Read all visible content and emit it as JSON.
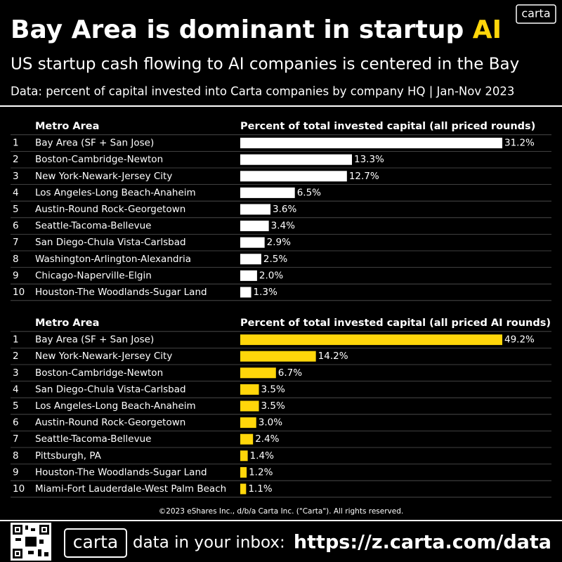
{
  "header": {
    "logo": "carta",
    "title": "Bay Area is dominant in startup",
    "title_highlight": "AI",
    "subtitle": "US startup cash flowing to AI companies is centered in the Bay",
    "source": "Data: percent of capital invested into Carta companies by company HQ | Jan-Nov 2023"
  },
  "chart_data": [
    {
      "type": "bar",
      "orientation": "horizontal",
      "color": "#ffffff",
      "category_header": "Metro Area",
      "value_header": "Percent of total invested capital (all priced rounds)",
      "ranks": [
        1,
        2,
        3,
        4,
        5,
        6,
        7,
        8,
        9,
        10
      ],
      "categories": [
        "Bay Area (SF + San Jose)",
        "Boston-Cambridge-Newton",
        "New York-Newark-Jersey City",
        "Los Angeles-Long Beach-Anaheim",
        "Austin-Round Rock-Georgetown",
        "Seattle-Tacoma-Bellevue",
        "San Diego-Chula Vista-Carlsbad",
        "Washington-Arlington-Alexandria",
        "Chicago-Naperville-Elgin",
        "Houston-The Woodlands-Sugar Land"
      ],
      "values": [
        31.2,
        13.3,
        12.7,
        6.5,
        3.6,
        3.4,
        2.9,
        2.5,
        2.0,
        1.3
      ],
      "value_labels": [
        "31.2%",
        "13.3%",
        "12.7%",
        "6.5%",
        "3.6%",
        "3.4%",
        "2.9%",
        "2.5%",
        "2.0%",
        "1.3%"
      ]
    },
    {
      "type": "bar",
      "orientation": "horizontal",
      "color": "#ffd60a",
      "category_header": "Metro Area",
      "value_header": "Percent of total invested capital (all priced AI rounds)",
      "ranks": [
        1,
        2,
        3,
        4,
        5,
        6,
        7,
        8,
        9,
        10
      ],
      "categories": [
        "Bay Area (SF + San Jose)",
        "New York-Newark-Jersey City",
        "Boston-Cambridge-Newton",
        "San Diego-Chula Vista-Carlsbad",
        "Los Angeles-Long Beach-Anaheim",
        "Austin-Round Rock-Georgetown",
        "Seattle-Tacoma-Bellevue",
        "Pittsburgh, PA",
        "Houston-The Woodlands-Sugar Land",
        "Miami-Fort Lauderdale-West Palm Beach"
      ],
      "values": [
        49.2,
        14.2,
        6.7,
        3.5,
        3.5,
        3.0,
        2.4,
        1.4,
        1.2,
        1.1
      ],
      "value_labels": [
        "49.2%",
        "14.2%",
        "6.7%",
        "3.5%",
        "3.5%",
        "3.0%",
        "2.4%",
        "1.4%",
        "1.2%",
        "1.1%"
      ]
    }
  ],
  "footer": {
    "copyright": "©2023 eShares Inc., d/b/a Carta Inc. (\"Carta\"). All rights reserved.",
    "logo": "carta",
    "cta": "data in your inbox:",
    "url": "https://z.carta.com/data"
  }
}
